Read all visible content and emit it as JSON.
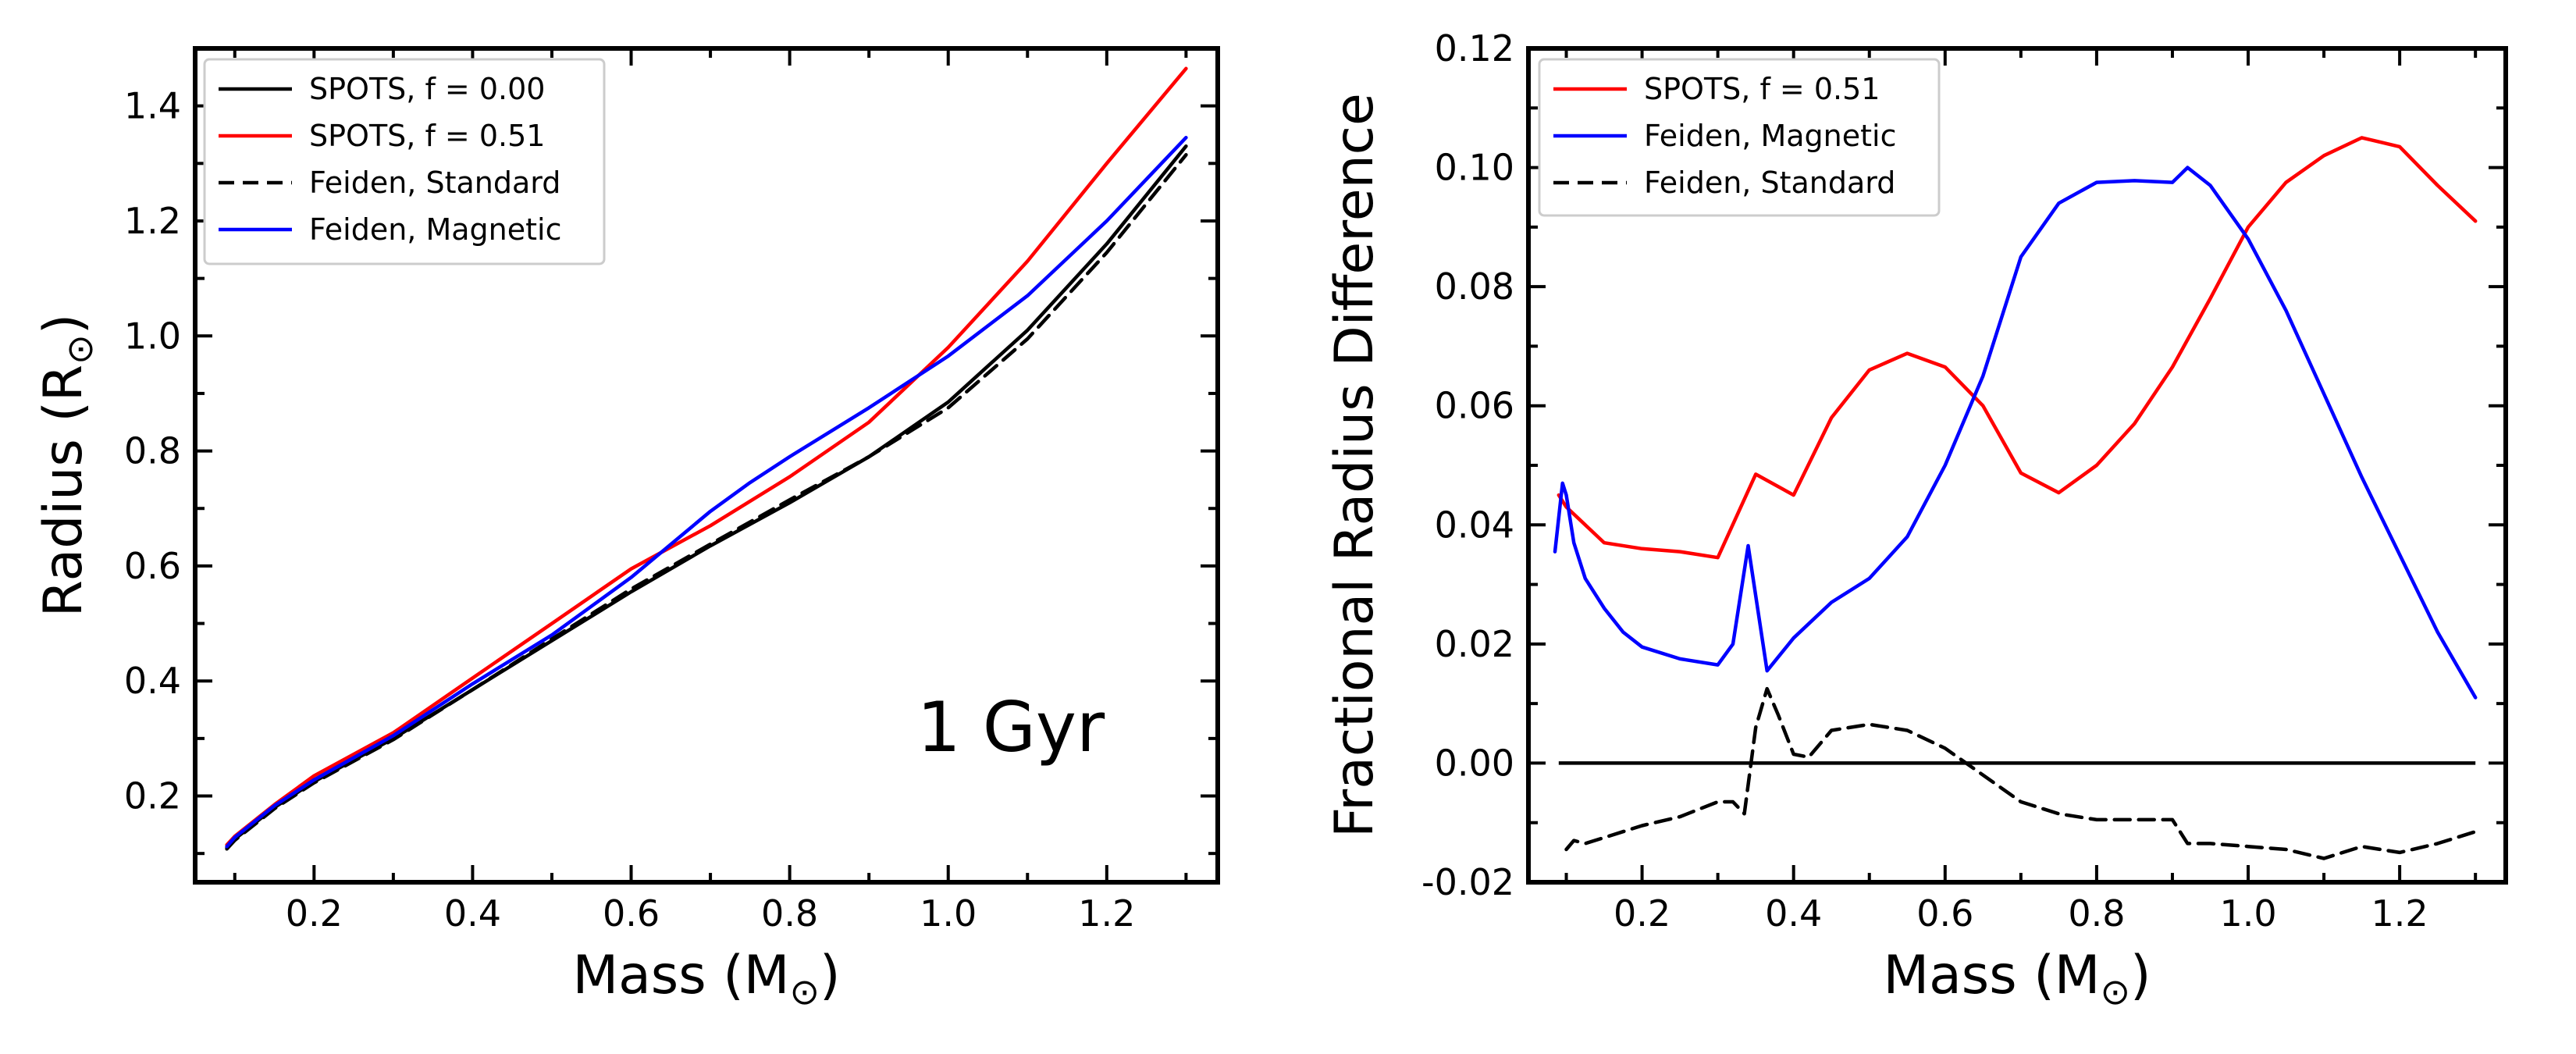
{
  "chart_data": [
    {
      "type": "line",
      "xlabel": "Mass (M",
      "xlabel_sub": "⊙",
      "xlabel_close": ")",
      "ylabel": "Radius (R",
      "ylabel_sub": "⊙",
      "ylabel_close": ")",
      "xlim": [
        0.05,
        1.34
      ],
      "ylim": [
        0.05,
        1.5
      ],
      "xticks": [
        0.2,
        0.4,
        0.6,
        0.8,
        1.0,
        1.2
      ],
      "xtick_labels": [
        "0.2",
        "0.4",
        "0.6",
        "0.8",
        "1.0",
        "1.2"
      ],
      "xminor": [
        0.1,
        0.3,
        0.5,
        0.7,
        0.9,
        1.1,
        1.3
      ],
      "yticks": [
        0.2,
        0.4,
        0.6,
        0.8,
        1.0,
        1.2,
        1.4
      ],
      "ytick_labels": [
        "0.2",
        "0.4",
        "0.6",
        "0.8",
        "1.0",
        "1.2",
        "1.4"
      ],
      "yminor": [
        0.1,
        0.3,
        0.5,
        0.7,
        0.9,
        1.1,
        1.3
      ],
      "legend_position": "top-left",
      "annotation": "1 Gyr",
      "series": [
        {
          "name": "SPOTS, f = 0.00",
          "color": "#000000",
          "dash": "solid",
          "x": [
            0.09,
            0.1,
            0.15,
            0.2,
            0.3,
            0.4,
            0.5,
            0.6,
            0.7,
            0.8,
            0.9,
            1.0,
            1.1,
            1.2,
            1.3
          ],
          "y": [
            0.11,
            0.125,
            0.18,
            0.225,
            0.3,
            0.385,
            0.47,
            0.555,
            0.635,
            0.71,
            0.79,
            0.885,
            1.01,
            1.16,
            1.33
          ]
        },
        {
          "name": "SPOTS, f = 0.51",
          "color": "#ff0000",
          "dash": "solid",
          "x": [
            0.09,
            0.1,
            0.15,
            0.2,
            0.3,
            0.4,
            0.5,
            0.6,
            0.7,
            0.8,
            0.9,
            1.0,
            1.1,
            1.2,
            1.3
          ],
          "y": [
            0.115,
            0.13,
            0.185,
            0.235,
            0.31,
            0.405,
            0.5,
            0.595,
            0.67,
            0.755,
            0.85,
            0.98,
            1.13,
            1.3,
            1.465
          ]
        },
        {
          "name": "Feiden, Standard",
          "color": "#000000",
          "dash": "dashed",
          "x": [
            0.09,
            0.1,
            0.15,
            0.2,
            0.3,
            0.4,
            0.5,
            0.6,
            0.7,
            0.8,
            0.9,
            1.0,
            1.1,
            1.2,
            1.3
          ],
          "y": [
            0.108,
            0.123,
            0.178,
            0.223,
            0.298,
            0.385,
            0.473,
            0.56,
            0.638,
            0.715,
            0.79,
            0.875,
            0.995,
            1.145,
            1.315
          ]
        },
        {
          "name": "Feiden, Magnetic",
          "color": "#0000ff",
          "dash": "solid",
          "x": [
            0.09,
            0.1,
            0.15,
            0.2,
            0.3,
            0.4,
            0.5,
            0.6,
            0.7,
            0.75,
            0.8,
            0.9,
            1.0,
            1.1,
            1.2,
            1.3
          ],
          "y": [
            0.112,
            0.128,
            0.183,
            0.228,
            0.305,
            0.395,
            0.48,
            0.58,
            0.695,
            0.745,
            0.79,
            0.875,
            0.965,
            1.07,
            1.2,
            1.345
          ]
        }
      ]
    },
    {
      "type": "line",
      "xlabel": "Mass (M",
      "xlabel_sub": "⊙",
      "xlabel_close": ")",
      "ylabel": "Fractional Radius Difference",
      "xlim": [
        0.05,
        1.34
      ],
      "ylim": [
        -0.02,
        0.12
      ],
      "xticks": [
        0.2,
        0.4,
        0.6,
        0.8,
        1.0,
        1.2
      ],
      "xtick_labels": [
        "0.2",
        "0.4",
        "0.6",
        "0.8",
        "1.0",
        "1.2"
      ],
      "xminor": [
        0.1,
        0.3,
        0.5,
        0.7,
        0.9,
        1.1,
        1.3
      ],
      "yticks": [
        -0.02,
        0.0,
        0.02,
        0.04,
        0.06,
        0.08,
        0.1,
        0.12
      ],
      "ytick_labels": [
        "-0.02",
        "0.00",
        "0.02",
        "0.04",
        "0.06",
        "0.08",
        "0.10",
        "0.12"
      ],
      "yminor": [
        -0.01,
        0.01,
        0.03,
        0.05,
        0.07,
        0.09,
        0.11
      ],
      "legend_position": "top-left",
      "hline": 0.0,
      "hline_xrange": [
        0.09,
        1.3
      ],
      "series": [
        {
          "name": "SPOTS, f = 0.51",
          "color": "#ff0000",
          "dash": "solid",
          "x": [
            0.09,
            0.1,
            0.15,
            0.2,
            0.25,
            0.3,
            0.35,
            0.4,
            0.45,
            0.5,
            0.55,
            0.6,
            0.65,
            0.7,
            0.75,
            0.8,
            0.85,
            0.9,
            0.95,
            1.0,
            1.05,
            1.1,
            1.15,
            1.2,
            1.25,
            1.3
          ],
          "y": [
            0.045,
            0.043,
            0.037,
            0.036,
            0.0355,
            0.0345,
            0.0485,
            0.045,
            0.058,
            0.066,
            0.0688,
            0.0665,
            0.06,
            0.0487,
            0.0454,
            0.05,
            0.057,
            0.0665,
            0.078,
            0.09,
            0.0975,
            0.102,
            0.105,
            0.1035,
            0.097,
            0.091
          ]
        },
        {
          "name": "Feiden, Magnetic",
          "color": "#0000ff",
          "dash": "solid",
          "x": [
            0.085,
            0.095,
            0.1,
            0.11,
            0.125,
            0.15,
            0.175,
            0.2,
            0.25,
            0.3,
            0.32,
            0.34,
            0.365,
            0.4,
            0.45,
            0.5,
            0.55,
            0.6,
            0.65,
            0.7,
            0.75,
            0.8,
            0.85,
            0.9,
            0.92,
            0.95,
            1.0,
            1.05,
            1.1,
            1.15,
            1.2,
            1.25,
            1.3
          ],
          "y": [
            0.0355,
            0.047,
            0.045,
            0.037,
            0.031,
            0.026,
            0.022,
            0.0195,
            0.0175,
            0.0165,
            0.02,
            0.0365,
            0.0155,
            0.021,
            0.027,
            0.031,
            0.038,
            0.05,
            0.065,
            0.085,
            0.094,
            0.0975,
            0.0978,
            0.0975,
            0.1,
            0.097,
            0.088,
            0.076,
            0.062,
            0.048,
            0.035,
            0.022,
            0.011
          ]
        },
        {
          "name": "Feiden, Standard",
          "color": "#000000",
          "dash": "dashed",
          "x": [
            0.1,
            0.11,
            0.125,
            0.15,
            0.2,
            0.25,
            0.3,
            0.32,
            0.335,
            0.35,
            0.365,
            0.38,
            0.4,
            0.42,
            0.45,
            0.5,
            0.55,
            0.6,
            0.65,
            0.7,
            0.75,
            0.8,
            0.85,
            0.9,
            0.92,
            0.95,
            1.0,
            1.05,
            1.1,
            1.15,
            1.2,
            1.25,
            1.3
          ],
          "y": [
            -0.0145,
            -0.013,
            -0.0135,
            -0.0125,
            -0.0105,
            -0.009,
            -0.0065,
            -0.0065,
            -0.0085,
            0.006,
            0.0125,
            0.008,
            0.0015,
            0.001,
            0.0055,
            0.0065,
            0.0055,
            0.0025,
            -0.002,
            -0.0065,
            -0.0085,
            -0.0095,
            -0.0095,
            -0.0095,
            -0.0135,
            -0.0135,
            -0.014,
            -0.0145,
            -0.016,
            -0.014,
            -0.015,
            -0.0135,
            -0.0115
          ]
        }
      ]
    }
  ]
}
